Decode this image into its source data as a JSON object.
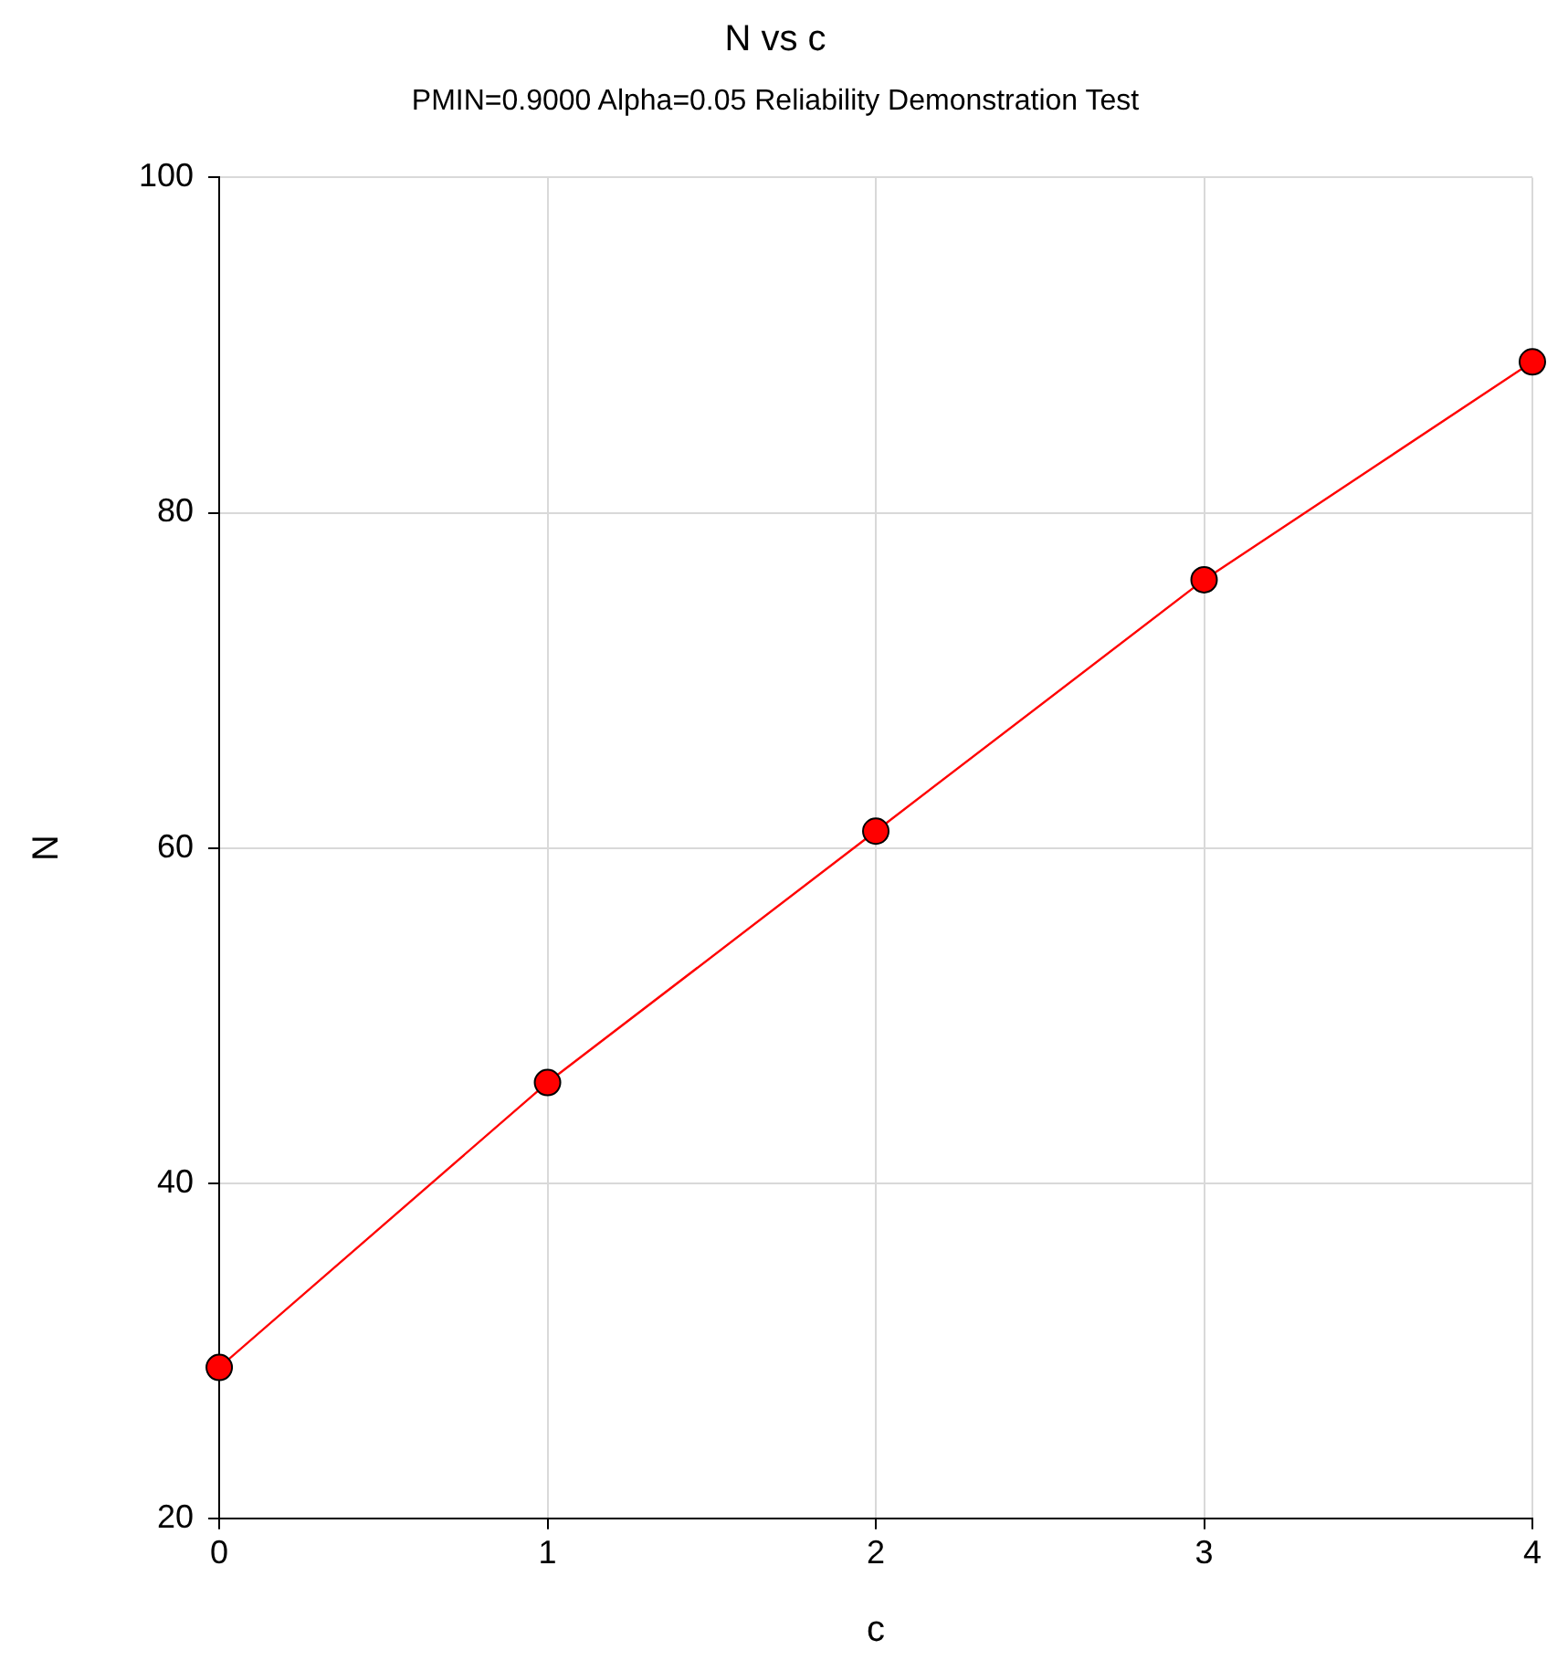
{
  "chart_data": {
    "type": "line",
    "title": "N vs c",
    "subtitle": "PMIN=0.9000 Alpha=0.05 Reliability Demonstration Test",
    "xlabel": "c",
    "ylabel": "N",
    "x": [
      0,
      1,
      2,
      3,
      4
    ],
    "series": [
      {
        "color": "#ff0000",
        "values": [
          29,
          46,
          61,
          76,
          89
        ]
      }
    ],
    "xlim": [
      0,
      4
    ],
    "xticks": [
      0,
      1,
      2,
      3,
      4
    ],
    "ylim": [
      20,
      100
    ],
    "yticks": [
      20,
      40,
      60,
      80,
      100
    ],
    "grid": true,
    "legend": false,
    "marker": "circle",
    "line_style": "solid"
  }
}
